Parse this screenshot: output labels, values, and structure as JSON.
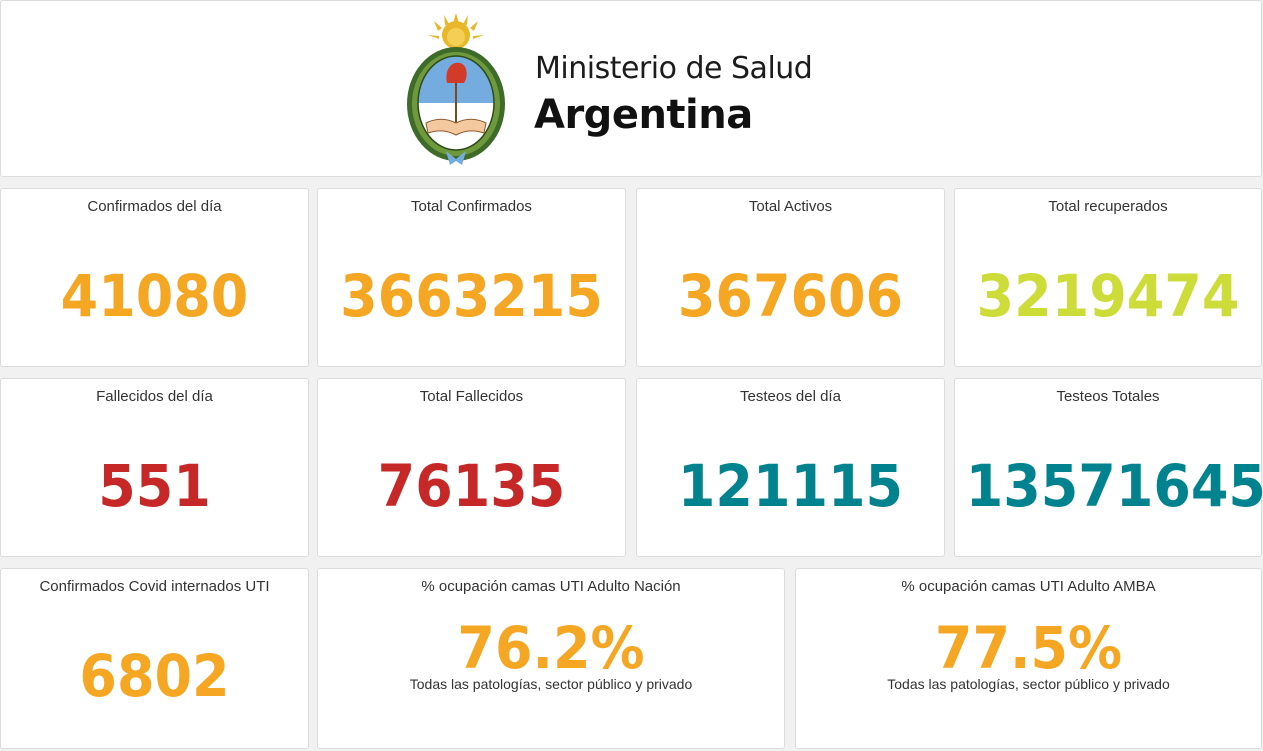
{
  "header": {
    "title_line1": "Ministerio de Salud",
    "title_line2": "Argentina",
    "logo_icon": "escudo-argentina-icon"
  },
  "colors": {
    "orange": "#f5a623",
    "lime": "#cddc39",
    "red": "#c62828",
    "teal": "#00838f"
  },
  "stats": {
    "confirmados_dia": {
      "label": "Confirmados del día",
      "value": "41080"
    },
    "total_confirmados": {
      "label": "Total Confirmados",
      "value": "3663215"
    },
    "total_activos": {
      "label": "Total Activos",
      "value": "367606"
    },
    "total_recuperados": {
      "label": "Total recuperados",
      "value": "3219474"
    },
    "fallecidos_dia": {
      "label": "Fallecidos del día",
      "value": "551"
    },
    "total_fallecidos": {
      "label": "Total Fallecidos",
      "value": "76135"
    },
    "testeos_dia": {
      "label": "Testeos del día",
      "value": "121115"
    },
    "testeos_totales": {
      "label": "Testeos Totales",
      "value": "13571645"
    },
    "internados_uti": {
      "label": "Confirmados Covid internados UTI",
      "value": "6802"
    },
    "ocupacion_nacion": {
      "label": "% ocupación camas UTI Adulto Nación",
      "value": "76.2%",
      "note": "Todas las patologías, sector público y privado"
    },
    "ocupacion_amba": {
      "label": "% ocupación camas UTI Adulto AMBA",
      "value": "77.5%",
      "note": "Todas las patologías, sector público y privado"
    }
  }
}
